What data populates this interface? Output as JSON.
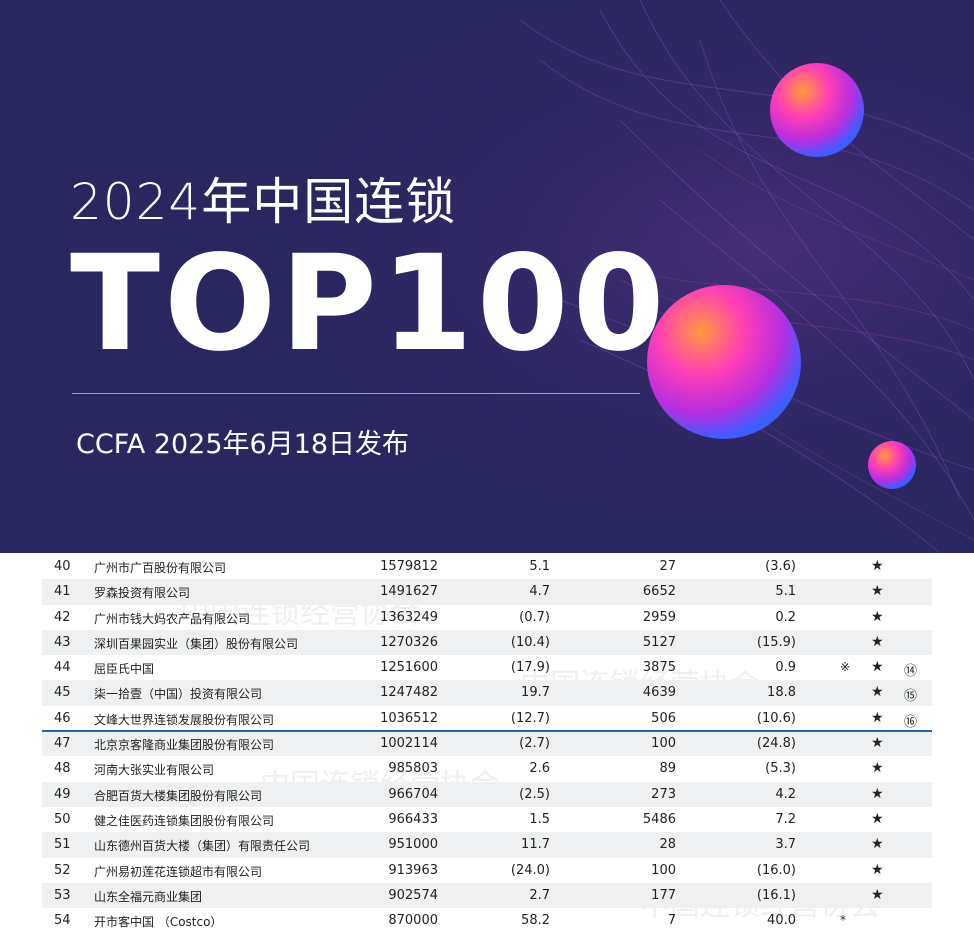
{
  "banner": {
    "subtitle": "2024年中国连锁",
    "title": "TOP100",
    "release": "CCFA 2025年6月18日发布",
    "colors": {
      "background": "#2a2660",
      "accent_pink": "#ff3fb5",
      "accent_orange": "#ff8a3c",
      "accent_blue": "#4a6cff"
    }
  },
  "watermark_text": "中国连锁经营协会",
  "highlight_color": "#2d5fa8",
  "table": {
    "rows": [
      {
        "rank": "40",
        "name": "广州市广百股份有限公司",
        "sales": "1579812",
        "growth": "5.1",
        "stores": "27",
        "store_growth": "(3.6)",
        "mark1": "",
        "mark2": "★",
        "mark3": ""
      },
      {
        "rank": "41",
        "name": "罗森投资有限公司",
        "sales": "1491627",
        "growth": "4.7",
        "stores": "6652",
        "store_growth": "5.1",
        "mark1": "",
        "mark2": "★",
        "mark3": ""
      },
      {
        "rank": "42",
        "name": "广州市钱大妈农产品有限公司",
        "sales": "1363249",
        "growth": "(0.7)",
        "stores": "2959",
        "store_growth": "0.2",
        "mark1": "",
        "mark2": "★",
        "mark3": ""
      },
      {
        "rank": "43",
        "name": "深圳百果园实业（集团）股份有限公司",
        "sales": "1270326",
        "growth": "(10.4)",
        "stores": "5127",
        "store_growth": "(15.9)",
        "mark1": "",
        "mark2": "★",
        "mark3": ""
      },
      {
        "rank": "44",
        "name": "屈臣氏中国",
        "sales": "1251600",
        "growth": "(17.9)",
        "stores": "3875",
        "store_growth": "0.9",
        "mark1": "※",
        "mark2": "★",
        "mark3": "⑭"
      },
      {
        "rank": "45",
        "name": "柒一拾壹（中国）投资有限公司",
        "sales": "1247482",
        "growth": "19.7",
        "stores": "4639",
        "store_growth": "18.8",
        "mark1": "",
        "mark2": "★",
        "mark3": "⑮"
      },
      {
        "rank": "46",
        "name": "文峰大世界连锁发展股份有限公司",
        "sales": "1036512",
        "growth": "(12.7)",
        "stores": "506",
        "store_growth": "(10.6)",
        "mark1": "",
        "mark2": "★",
        "mark3": "⑯"
      },
      {
        "rank": "47",
        "name": "北京京客隆商业集团股份有限公司",
        "sales": "1002114",
        "growth": "(2.7)",
        "stores": "100",
        "store_growth": "(24.8)",
        "mark1": "",
        "mark2": "★",
        "mark3": ""
      },
      {
        "rank": "48",
        "name": "河南大张实业有限公司",
        "sales": "985803",
        "growth": "2.6",
        "stores": "89",
        "store_growth": "(5.3)",
        "mark1": "",
        "mark2": "★",
        "mark3": ""
      },
      {
        "rank": "49",
        "name": "合肥百货大楼集团股份有限公司",
        "sales": "966704",
        "growth": "(2.5)",
        "stores": "273",
        "store_growth": "4.2",
        "mark1": "",
        "mark2": "★",
        "mark3": ""
      },
      {
        "rank": "50",
        "name": "健之佳医药连锁集团股份有限公司",
        "sales": "966433",
        "growth": "1.5",
        "stores": "5486",
        "store_growth": "7.2",
        "mark1": "",
        "mark2": "★",
        "mark3": ""
      },
      {
        "rank": "51",
        "name": "山东德州百货大楼（集团）有限责任公司",
        "sales": "951000",
        "growth": "11.7",
        "stores": "28",
        "store_growth": "3.7",
        "mark1": "",
        "mark2": "★",
        "mark3": ""
      },
      {
        "rank": "52",
        "name": "广州易初莲花连锁超市有限公司",
        "sales": "913963",
        "growth": "(24.0)",
        "stores": "100",
        "store_growth": "(16.0)",
        "mark1": "",
        "mark2": "★",
        "mark3": ""
      },
      {
        "rank": "53",
        "name": "山东全福元商业集团",
        "sales": "902574",
        "growth": "2.7",
        "stores": "177",
        "store_growth": "(16.1)",
        "mark1": "",
        "mark2": "★",
        "mark3": ""
      },
      {
        "rank": "54",
        "name": "开市客中国 （Costco）",
        "sales": "870000",
        "growth": "58.2",
        "stores": "7",
        "store_growth": "40.0",
        "mark1": "*",
        "mark2": "",
        "mark3": ""
      }
    ]
  }
}
